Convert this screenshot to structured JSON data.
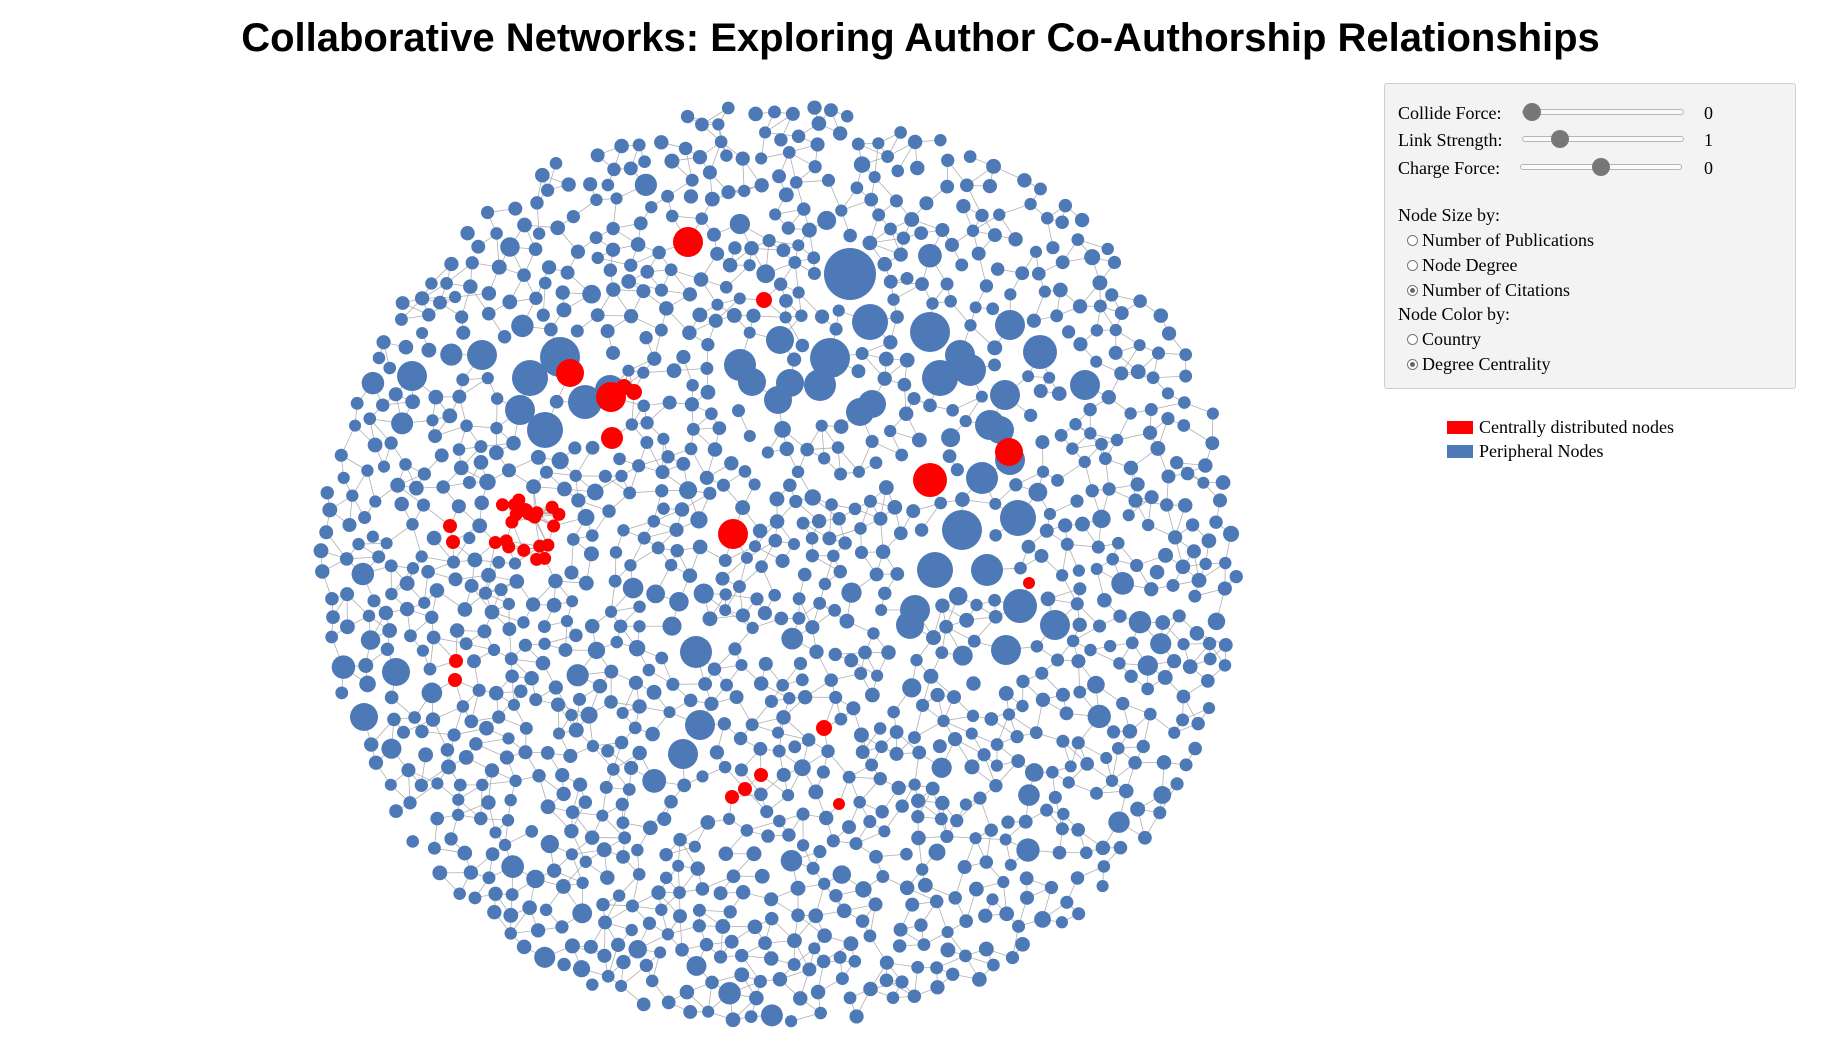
{
  "title": "Collaborative Networks: Exploring Author Co-Authorship Relationships",
  "controls": {
    "sliders": [
      {
        "label": "Collide Force:",
        "value": "0",
        "level": 0.0
      },
      {
        "label": "Link Strength:",
        "value": "1",
        "level": 0.2
      },
      {
        "label": "Charge Force:",
        "value": "0",
        "level": 0.5
      }
    ],
    "size_by_label": "Node Size by:",
    "size_options": [
      {
        "label": "Number of Publications",
        "checked": false
      },
      {
        "label": "Node Degree",
        "checked": false
      },
      {
        "label": "Number of Citations",
        "checked": true
      }
    ],
    "color_by_label": "Node Color by:",
    "color_options": [
      {
        "label": "Country",
        "checked": false
      },
      {
        "label": "Degree Centrality",
        "checked": true
      }
    ]
  },
  "legend": [
    {
      "label": "Centrally distributed nodes",
      "color": "#ff0000"
    },
    {
      "label": "Peripheral Nodes",
      "color": "#4e79b7"
    }
  ],
  "colors": {
    "central": "#ff0000",
    "peripheral": "#4e79b7",
    "link": "#b0b0b0"
  }
}
